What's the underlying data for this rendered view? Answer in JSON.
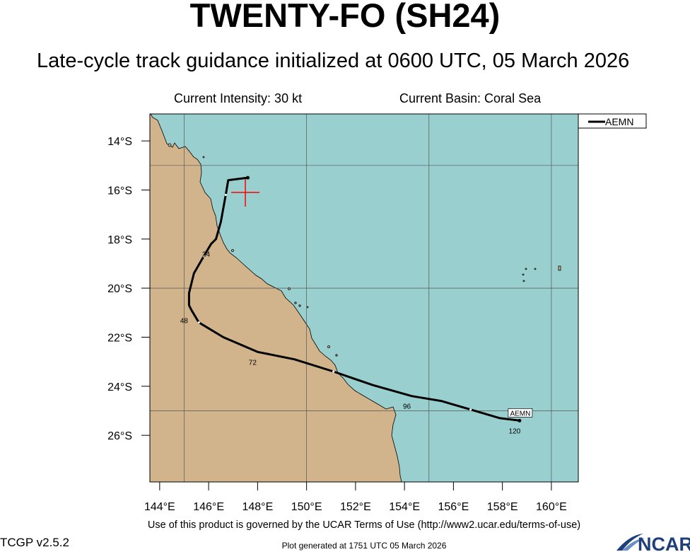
{
  "title": "TWENTY-FO (SH24)",
  "subtitle": "Late-cycle track guidance initialized at 0600 UTC, 05 March 2026",
  "current_intensity": "Current Intensity: 30 kt",
  "current_basin": "Current Basin: Coral Sea",
  "legend": {
    "model": "AEMN"
  },
  "axes": {
    "lat_labels": [
      "14°S",
      "16°S",
      "18°S",
      "20°S",
      "22°S",
      "24°S",
      "26°S"
    ],
    "lon_labels": [
      "144°E",
      "146°E",
      "148°E",
      "150°E",
      "152°E",
      "154°E",
      "156°E",
      "158°E",
      "160°E"
    ]
  },
  "map": {
    "lon_range": [
      143.6,
      161.1
    ],
    "lat_range": [
      -27.9,
      -12.9
    ],
    "ocean_color": "#99cfcf",
    "land_color": "#d2b48c",
    "current_position": {
      "lon": 147.5,
      "lat": -16.1
    },
    "track": {
      "model": "AEMN",
      "points": [
        {
          "lon": 147.6,
          "lat": -15.5
        },
        {
          "lon": 146.8,
          "lat": -15.6
        },
        {
          "lon": 146.7,
          "lat": -16.2
        },
        {
          "lon": 146.5,
          "lat": -17.3
        },
        {
          "lon": 146.3,
          "lat": -18.0
        },
        {
          "lon": 146.1,
          "lat": -18.2
        },
        {
          "lon": 145.8,
          "lat": -18.7
        },
        {
          "lon": 145.4,
          "lat": -19.4
        },
        {
          "lon": 145.2,
          "lat": -20.2
        },
        {
          "lon": 145.2,
          "lat": -20.7
        },
        {
          "lon": 145.3,
          "lat": -20.9
        },
        {
          "lon": 145.6,
          "lat": -21.4
        },
        {
          "lon": 146.6,
          "lat": -22.0
        },
        {
          "lon": 148.0,
          "lat": -22.6
        },
        {
          "lon": 149.5,
          "lat": -22.9
        },
        {
          "lon": 151.1,
          "lat": -23.4
        },
        {
          "lon": 152.7,
          "lat": -23.95
        },
        {
          "lon": 154.3,
          "lat": -24.4
        },
        {
          "lon": 155.5,
          "lat": -24.6
        },
        {
          "lon": 156.7,
          "lat": -24.95
        },
        {
          "lon": 157.9,
          "lat": -25.3
        },
        {
          "lon": 158.7,
          "lat": -25.4
        }
      ],
      "labels": [
        {
          "text": "24",
          "lon": 146.1,
          "lat": -18.2
        },
        {
          "text": "48",
          "lon": 145.2,
          "lat": -20.9
        },
        {
          "text": "72",
          "lon": 148.0,
          "lat": -22.6
        },
        {
          "text": "96",
          "lon": 154.3,
          "lat": -24.4
        },
        {
          "text": "120",
          "lon": 158.7,
          "lat": -25.4
        }
      ]
    }
  },
  "footer": {
    "terms": "Use of this product is governed by the UCAR Terms of Use (http://www2.ucar.edu/terms-of-use)",
    "version": "TCGP v2.5.2",
    "generated": "Plot generated at 1751 UTC   05 March 2026",
    "logo_text": "NCAR"
  }
}
